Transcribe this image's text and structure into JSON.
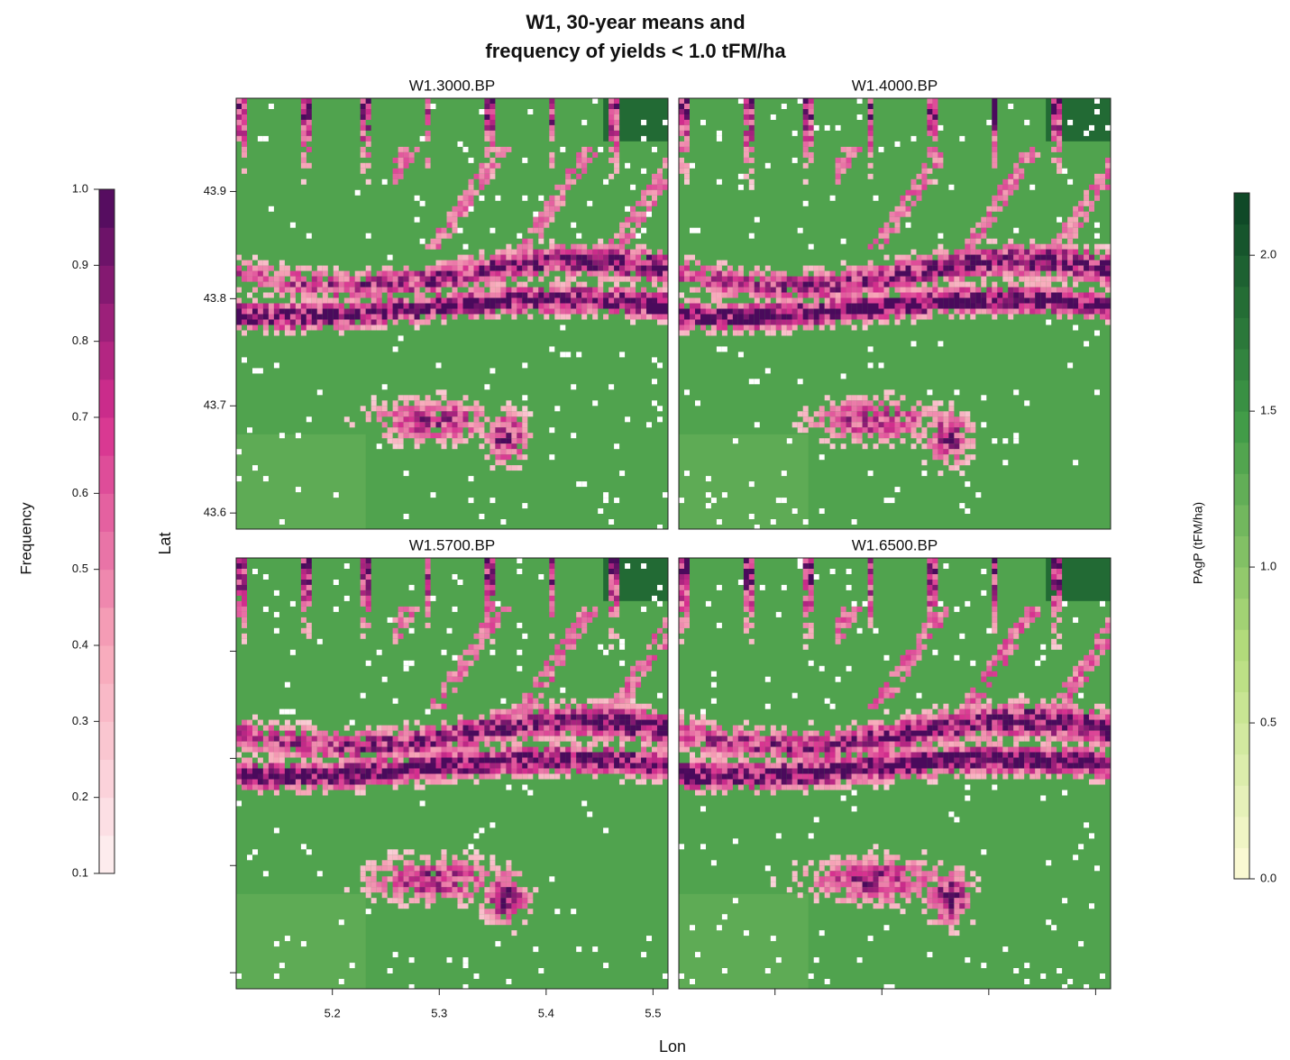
{
  "chart_data": {
    "type": "levelplot",
    "title": [
      "W1, 30-year means and",
      "frequency of yields < 1.0 tFM/ha"
    ],
    "panels": [
      "W1.3000.BP",
      "W1.4000.BP",
      "W1.5700.BP",
      "W1.6500.BP"
    ],
    "xlabel": "Lon",
    "ylabel": "Lat",
    "xlim": [
      5.11,
      5.514
    ],
    "xticks": [
      5.2,
      5.3,
      5.4,
      5.5
    ],
    "ylim": [
      43.585,
      43.987
    ],
    "yticks": [
      43.6,
      43.7,
      43.8,
      43.9
    ],
    "colorbars": [
      {
        "label": "Frequency",
        "lim": [
          0.1,
          1.0
        ],
        "colors": [
          "#fdf2f2",
          "#f7a6b8",
          "#d62f8f",
          "#4a0a5c"
        ],
        "ticks": [
          0.1,
          0.2,
          0.3,
          0.4,
          0.5,
          0.6,
          0.7,
          0.8,
          0.9,
          {
            "value": 1.0,
            "label": "1.0"
          }
        ]
      },
      {
        "label": "PAgP (tFM/ha)",
        "lim": [
          0,
          2.2
        ],
        "colors": [
          "#fffbd8",
          "#b5dd7c",
          "#3f9a47",
          "#0b4325"
        ],
        "ticks": [
          {
            "value": 0,
            "label": "0.0"
          },
          0.5,
          {
            "value": 1.0,
            "label": "1.0"
          },
          1.5,
          {
            "value": 2.0,
            "label": "2.0"
          }
        ]
      }
    ]
  }
}
